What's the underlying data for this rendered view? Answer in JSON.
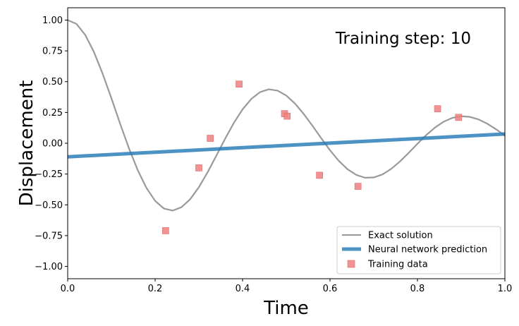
{
  "chart_data": {
    "type": "line",
    "title": "",
    "annotation": "Training step: 10",
    "xlabel": "Time",
    "ylabel": "Displacement",
    "xlim": [
      0.0,
      1.0
    ],
    "ylim": [
      -1.1,
      1.1
    ],
    "x_ticks": [
      "0.0",
      "0.2",
      "0.4",
      "0.6",
      "0.8",
      "1.0"
    ],
    "y_ticks": [
      "-1.00",
      "-0.75",
      "-0.50",
      "-0.25",
      "0.00",
      "0.25",
      "0.50",
      "0.75",
      "1.00"
    ],
    "grid": false,
    "legend_position": "lower-right",
    "series": [
      {
        "name": "Exact solution",
        "kind": "line",
        "color": "#999999",
        "x": [
          0.0,
          0.02,
          0.04,
          0.06,
          0.08,
          0.1,
          0.12,
          0.14,
          0.16,
          0.18,
          0.2,
          0.22,
          0.24,
          0.26,
          0.28,
          0.3,
          0.32,
          0.34,
          0.36,
          0.38,
          0.4,
          0.42,
          0.44,
          0.46,
          0.48,
          0.5,
          0.52,
          0.54,
          0.56,
          0.58,
          0.6,
          0.62,
          0.64,
          0.66,
          0.68,
          0.7,
          0.72,
          0.74,
          0.76,
          0.78,
          0.8,
          0.82,
          0.84,
          0.86,
          0.88,
          0.9,
          0.92,
          0.94,
          0.96,
          0.98,
          1.0
        ],
        "y": [
          1.0,
          0.969,
          0.88,
          0.741,
          0.564,
          0.365,
          0.158,
          -0.04,
          -0.217,
          -0.362,
          -0.468,
          -0.53,
          -0.547,
          -0.52,
          -0.455,
          -0.357,
          -0.236,
          -0.101,
          0.036,
          0.165,
          0.275,
          0.36,
          0.415,
          0.438,
          0.427,
          0.387,
          0.322,
          0.237,
          0.141,
          0.04,
          -0.057,
          -0.143,
          -0.211,
          -0.257,
          -0.28,
          -0.278,
          -0.253,
          -0.208,
          -0.148,
          -0.078,
          -0.004,
          0.066,
          0.127,
          0.175,
          0.206,
          0.219,
          0.214,
          0.193,
          0.158,
          0.113,
          0.062
        ]
      },
      {
        "name": "Neural network prediction",
        "kind": "line",
        "color": "#1f77b4",
        "x": [
          0.0,
          1.0
        ],
        "y": [
          -0.11,
          0.075
        ]
      },
      {
        "name": "Training data",
        "kind": "scatter",
        "marker": "square",
        "color": "#f08080",
        "x": [
          0.224,
          0.3,
          0.326,
          0.392,
          0.496,
          0.502,
          0.576,
          0.664,
          0.846,
          0.894
        ],
        "y": [
          -0.71,
          -0.2,
          0.04,
          0.48,
          0.24,
          0.22,
          -0.26,
          -0.35,
          0.28,
          0.21
        ]
      }
    ]
  }
}
